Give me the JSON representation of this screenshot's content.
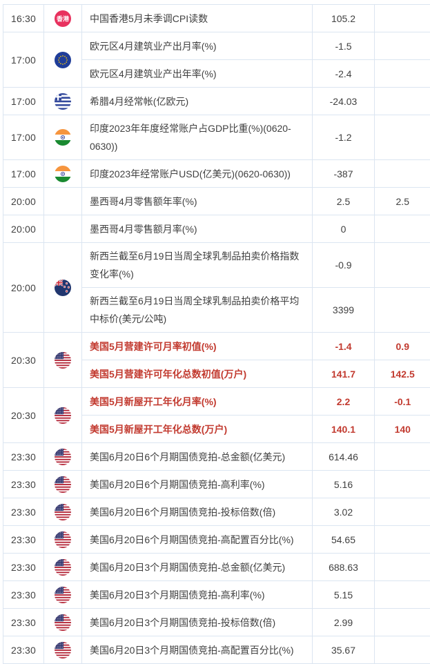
{
  "table": {
    "colors": {
      "accent_red": "#c23a2f",
      "grid_line": "#dbe5f1",
      "text": "#404040",
      "hk_badge": "#e8315e",
      "eu_blue": "#1f3d99",
      "eu_star_gold": "#ffcc00",
      "greece_blue": "#33499c",
      "india_saffron": "#f6953e",
      "india_green": "#1a8a31",
      "nz_navy": "#21366e",
      "us_navy": "#31356e",
      "us_red": "#b22234",
      "flag_red": "#cf2b3a"
    },
    "hk_badge_text": "香港",
    "flag_icons": {
      "hk": "flag-hongkong-icon",
      "eu": "flag-eurozone-icon",
      "gr": "flag-greece-icon",
      "in": "flag-india-icon",
      "nz": "flag-new-zealand-icon",
      "us": "flag-usa-icon",
      "none": "flag-cell-empty"
    },
    "groups": [
      {
        "time": "16:30",
        "flag": "hk",
        "highlight": false,
        "rows": [
          {
            "event": "中国香港5月未季调CPI读数",
            "value": "105.2",
            "value2": ""
          }
        ]
      },
      {
        "time": "17:00",
        "flag": "eu",
        "highlight": false,
        "rows": [
          {
            "event": "欧元区4月建筑业产出月率(%)",
            "value": "-1.5",
            "value2": ""
          },
          {
            "event": "欧元区4月建筑业产出年率(%)",
            "value": "-2.4",
            "value2": ""
          }
        ]
      },
      {
        "time": "17:00",
        "flag": "gr",
        "highlight": false,
        "rows": [
          {
            "event": "希腊4月经常帐(亿欧元)",
            "value": "-24.03",
            "value2": ""
          }
        ]
      },
      {
        "time": "17:00",
        "flag": "in",
        "highlight": false,
        "rows": [
          {
            "event": "印度2023年年度经常账户占GDP比重(%)(0620-0630))",
            "value": "-1.2",
            "value2": ""
          }
        ]
      },
      {
        "time": "17:00",
        "flag": "in",
        "highlight": false,
        "rows": [
          {
            "event": "印度2023年经常账户USD(亿美元)(0620-0630))",
            "value": "-387",
            "value2": ""
          }
        ]
      },
      {
        "time": "20:00",
        "flag": "none",
        "highlight": false,
        "rows": [
          {
            "event": "墨西哥4月零售额年率(%)",
            "value": "2.5",
            "value2": "2.5"
          }
        ]
      },
      {
        "time": "20:00",
        "flag": "none",
        "highlight": false,
        "rows": [
          {
            "event": "墨西哥4月零售额月率(%)",
            "value": "0",
            "value2": ""
          }
        ]
      },
      {
        "time": "20:00",
        "flag": "nz",
        "highlight": false,
        "rows": [
          {
            "event": "新西兰截至6月19日当周全球乳制品拍卖价格指数变化率(%)",
            "value": "-0.9",
            "value2": ""
          },
          {
            "event": "新西兰截至6月19日当周全球乳制品拍卖价格平均中标价(美元/公吨)",
            "value": "3399",
            "value2": ""
          }
        ]
      },
      {
        "time": "20:30",
        "flag": "us",
        "highlight": true,
        "rows": [
          {
            "event": "美国5月营建许可月率初值(%)",
            "value": "-1.4",
            "value2": "0.9"
          },
          {
            "event": "美国5月营建许可年化总数初值(万户)",
            "value": "141.7",
            "value2": "142.5"
          }
        ]
      },
      {
        "time": "20:30",
        "flag": "us",
        "highlight": true,
        "rows": [
          {
            "event": "美国5月新屋开工年化月率(%)",
            "value": "2.2",
            "value2": "-0.1"
          },
          {
            "event": "美国5月新屋开工年化总数(万户)",
            "value": "140.1",
            "value2": "140"
          }
        ]
      },
      {
        "time": "23:30",
        "flag": "us",
        "highlight": false,
        "rows": [
          {
            "event": "美国6月20日6个月期国债竞拍-总金额(亿美元)",
            "value": "614.46",
            "value2": ""
          }
        ]
      },
      {
        "time": "23:30",
        "flag": "us",
        "highlight": false,
        "rows": [
          {
            "event": "美国6月20日6个月期国债竞拍-高利率(%)",
            "value": "5.16",
            "value2": ""
          }
        ]
      },
      {
        "time": "23:30",
        "flag": "us",
        "highlight": false,
        "rows": [
          {
            "event": "美国6月20日6个月期国债竞拍-投标倍数(倍)",
            "value": "3.02",
            "value2": ""
          }
        ]
      },
      {
        "time": "23:30",
        "flag": "us",
        "highlight": false,
        "rows": [
          {
            "event": "美国6月20日6个月期国债竞拍-高配置百分比(%)",
            "value": "54.65",
            "value2": ""
          }
        ]
      },
      {
        "time": "23:30",
        "flag": "us",
        "highlight": false,
        "rows": [
          {
            "event": "美国6月20日3个月期国债竞拍-总金额(亿美元)",
            "value": "688.63",
            "value2": ""
          }
        ]
      },
      {
        "time": "23:30",
        "flag": "us",
        "highlight": false,
        "rows": [
          {
            "event": "美国6月20日3个月期国债竞拍-高利率(%)",
            "value": "5.15",
            "value2": ""
          }
        ]
      },
      {
        "time": "23:30",
        "flag": "us",
        "highlight": false,
        "rows": [
          {
            "event": "美国6月20日3个月期国债竞拍-投标倍数(倍)",
            "value": "2.99",
            "value2": ""
          }
        ]
      },
      {
        "time": "23:30",
        "flag": "us",
        "highlight": false,
        "rows": [
          {
            "event": "美国6月20日3个月期国债竞拍-高配置百分比(%)",
            "value": "35.67",
            "value2": ""
          }
        ]
      }
    ]
  }
}
